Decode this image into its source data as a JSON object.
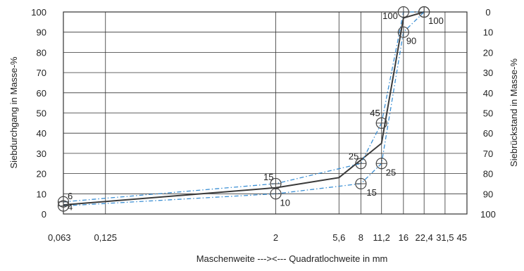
{
  "chart_data": {
    "type": "line",
    "title": "",
    "xlabel": "Maschenweite --->",
    "xlabel2": "<--- Quadratlochweite in mm",
    "ylabel_left": "Siebdurchgang in Masse-%",
    "ylabel_right": "Siebrückstand in Masse-%",
    "x_ticks": [
      "0,063",
      "0,125",
      "2",
      "5,6",
      "8",
      "11,2",
      "16",
      "22,4",
      "31,5",
      "45"
    ],
    "x_tick_values": [
      0.063,
      0.125,
      2,
      5.6,
      8,
      11.2,
      16,
      22.4,
      31.5,
      45
    ],
    "y_left_ticks": [
      0,
      10,
      20,
      30,
      40,
      50,
      60,
      70,
      80,
      90,
      100
    ],
    "y_right_ticks": [
      100,
      90,
      80,
      70,
      60,
      50,
      40,
      30,
      20,
      10,
      0
    ],
    "ylim": [
      0,
      100
    ],
    "grid": true,
    "series": [
      {
        "style": "solid-dark",
        "x": [
          0.063,
          2,
          5.6,
          11.2,
          16,
          22.4
        ],
        "y": [
          4.5,
          13,
          18,
          35,
          97,
          100
        ]
      },
      {
        "style": "dashed-blue-upper",
        "x": [
          0.063,
          2,
          8,
          11.2,
          16,
          22.4
        ],
        "y": [
          6,
          15,
          25,
          45,
          100,
          100
        ],
        "marker": "circle",
        "labels": [
          "6",
          "15",
          "25",
          "45",
          "100",
          ""
        ]
      },
      {
        "style": "dashed-blue-lower",
        "x": [
          0.063,
          2,
          8,
          11.2,
          16,
          22.4
        ],
        "y": [
          4,
          10,
          15,
          25,
          90,
          100
        ],
        "marker": "circle",
        "labels": [
          "4",
          "10",
          "15",
          "25",
          "90",
          "100"
        ]
      }
    ],
    "colors": {
      "solid": "#3a3a3a",
      "dashed": "#3b8fd4",
      "grid": "#333333",
      "marker": "#444444"
    }
  }
}
